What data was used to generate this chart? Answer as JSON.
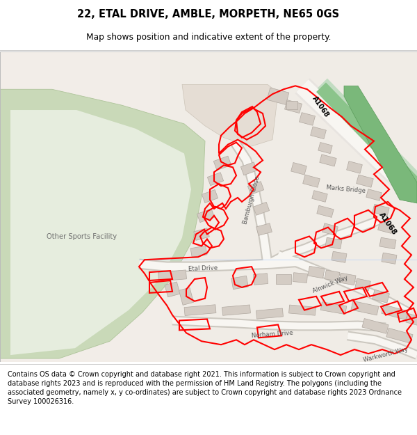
{
  "title_line1": "22, ETAL DRIVE, AMBLE, MORPETH, NE65 0GS",
  "title_line2": "Map shows position and indicative extent of the property.",
  "footer_text": "Contains OS data © Crown copyright and database right 2021. This information is subject to Crown copyright and database rights 2023 and is reproduced with the permission of HM Land Registry. The polygons (including the associated geometry, namely x, y co-ordinates) are subject to Crown copyright and database rights 2023 Ordnance Survey 100026316.",
  "bg_map": "#f2ede8",
  "bg_white": "#f8f6f3",
  "green_sports": "#c9d9b8",
  "green_sports_edge": "#aec49a",
  "tan_area": "#e5ddd4",
  "road_white": "#ffffff",
  "road_border": "#cccccc",
  "building_fill": "#d6cfc8",
  "building_edge": "#b8b0a8",
  "red": "#ff0000",
  "green_road": "#8bc48b",
  "green_road_light": "#c2dcc2",
  "water": "#6db56d",
  "label_color": "#444444",
  "road_label": "#555555"
}
